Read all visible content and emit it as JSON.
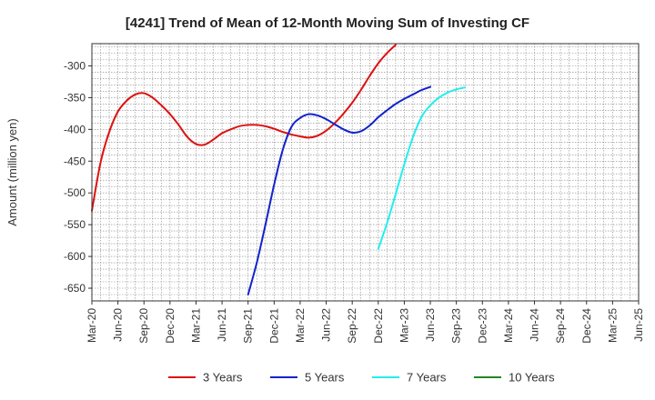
{
  "chart_data": {
    "type": "line",
    "title": "[4241]  Trend of Mean of 12-Month Moving Sum of Investing CF",
    "xlabel": "",
    "ylabel": "Amount (million yen)",
    "ylim": [
      -670,
      -265
    ],
    "yticks": [
      -300,
      -350,
      -400,
      -450,
      -500,
      -550,
      -600,
      -650
    ],
    "x_ticks": [
      "Mar-20",
      "Jun-20",
      "Sep-20",
      "Dec-20",
      "Mar-21",
      "Jun-21",
      "Sep-21",
      "Dec-21",
      "Mar-22",
      "Jun-22",
      "Sep-22",
      "Dec-22",
      "Mar-23",
      "Jun-23",
      "Sep-23",
      "Dec-23",
      "Mar-24",
      "Jun-24",
      "Sep-24",
      "Dec-24",
      "Mar-25",
      "Jun-25"
    ],
    "grid": true,
    "legend_position": "bottom",
    "series": [
      {
        "name": "3 Years",
        "color": "#dd1111",
        "values": [
          -528,
          -452,
          -404,
          -372,
          -355,
          -345,
          -343,
          -350,
          -362,
          -376,
          -393,
          -412,
          -423,
          -424,
          -416,
          -406,
          -400,
          -395,
          -393,
          -393,
          -395,
          -399,
          -404,
          -408,
          -411,
          -413,
          -410,
          -402,
          -390,
          -375,
          -358,
          -338,
          -316,
          -296,
          -280,
          -267
        ]
      },
      {
        "name": "5 Years",
        "color": "#1122cc",
        "values": [
          null,
          null,
          null,
          null,
          null,
          null,
          null,
          null,
          null,
          null,
          null,
          null,
          null,
          null,
          null,
          null,
          null,
          null,
          -660,
          -610,
          -550,
          -487,
          -432,
          -396,
          -382,
          -376,
          -378,
          -384,
          -392,
          -400,
          -405,
          -403,
          -394,
          -381,
          -370,
          -360,
          -352,
          -345,
          -338,
          -333
        ]
      },
      {
        "name": "7 Years",
        "color": "#22eeee",
        "values": [
          null,
          null,
          null,
          null,
          null,
          null,
          null,
          null,
          null,
          null,
          null,
          null,
          null,
          null,
          null,
          null,
          null,
          null,
          null,
          null,
          null,
          null,
          null,
          null,
          null,
          null,
          null,
          null,
          null,
          null,
          null,
          null,
          null,
          -588,
          -548,
          -502,
          -455,
          -412,
          -380,
          -362,
          -350,
          -342,
          -337,
          -334
        ]
      },
      {
        "name": "10 Years",
        "color": "#228822",
        "values": []
      }
    ]
  }
}
